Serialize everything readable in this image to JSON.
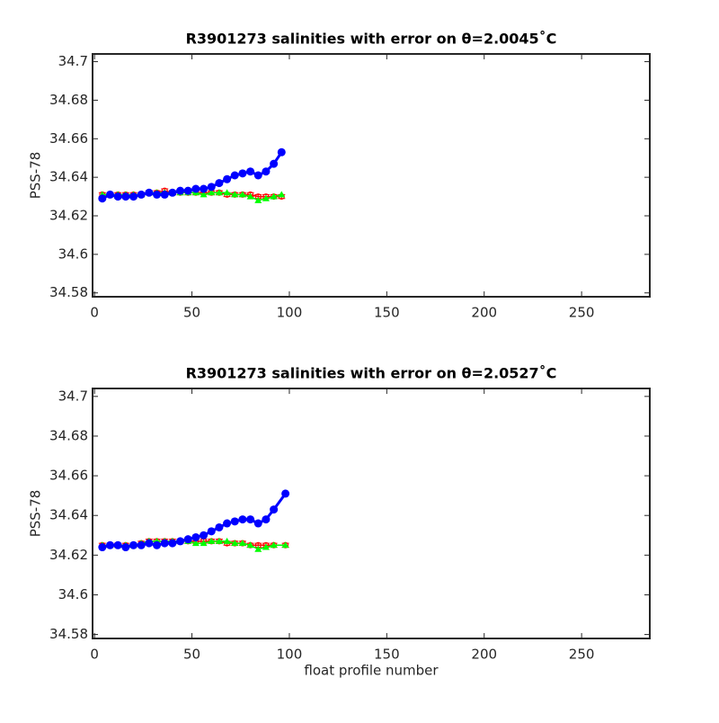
{
  "chart_data": [
    {
      "type": "line",
      "title": "R3901273 salinities with error on θ=2.0045˚C",
      "ylabel": "PSS-78",
      "x": [
        4,
        8,
        12,
        16,
        20,
        24,
        28,
        32,
        36,
        40,
        44,
        48,
        52,
        56,
        60,
        64,
        68,
        72,
        76,
        80,
        84,
        88,
        92,
        96
      ],
      "series": [
        {
          "color": "#ff0000",
          "marker": "circle-open",
          "values": [
            34.631,
            34.631,
            34.631,
            34.631,
            34.631,
            34.631,
            34.632,
            34.632,
            34.633,
            34.632,
            34.632,
            34.632,
            34.632,
            34.632,
            34.632,
            34.632,
            34.631,
            34.631,
            34.631,
            34.631,
            34.63,
            34.63,
            34.63,
            34.63
          ],
          "errors": [
            0.001,
            0.001,
            0.001,
            0.001,
            0.001,
            0.001,
            0.001,
            0.001,
            0.001,
            0.001,
            0.001,
            0.001,
            0.001,
            0.001,
            0.001,
            0.001,
            0.001,
            0.001,
            0.001,
            0.001,
            0.001,
            0.001,
            0.001,
            0.001
          ]
        },
        {
          "color": "#00ff00",
          "marker": "triangle",
          "values": [
            34.631,
            34.631,
            34.631,
            34.631,
            34.631,
            34.631,
            34.632,
            34.632,
            34.632,
            34.632,
            34.632,
            34.632,
            34.632,
            34.631,
            34.632,
            34.632,
            34.632,
            34.631,
            34.631,
            34.63,
            34.628,
            34.629,
            34.63,
            34.631
          ]
        },
        {
          "color": "#0000ff",
          "marker": "circle",
          "values": [
            34.629,
            34.631,
            34.63,
            34.63,
            34.63,
            34.631,
            34.632,
            34.631,
            34.631,
            34.632,
            34.633,
            34.633,
            34.634,
            34.634,
            34.635,
            34.637,
            34.639,
            34.641,
            34.642,
            34.643,
            34.641,
            34.643,
            34.647,
            34.653
          ]
        }
      ],
      "xlim": [
        -1,
        285
      ],
      "xticks": [
        0,
        50,
        100,
        150,
        200,
        250
      ],
      "ylim": [
        34.578,
        34.704
      ],
      "yticks": [
        34.58,
        34.6,
        34.62,
        34.64,
        34.66,
        34.68,
        34.7
      ]
    },
    {
      "type": "line",
      "title": "R3901273 salinities with error on θ=2.0527˚C",
      "ylabel": "PSS-78",
      "xlabel": "float profile number",
      "x": [
        4,
        8,
        12,
        16,
        20,
        24,
        28,
        32,
        36,
        40,
        44,
        48,
        52,
        56,
        60,
        64,
        68,
        72,
        76,
        80,
        84,
        88,
        92,
        98
      ],
      "series": [
        {
          "color": "#ff0000",
          "marker": "circle-open",
          "values": [
            34.625,
            34.625,
            34.625,
            34.625,
            34.625,
            34.626,
            34.627,
            34.627,
            34.627,
            34.627,
            34.627,
            34.627,
            34.627,
            34.627,
            34.627,
            34.627,
            34.626,
            34.626,
            34.626,
            34.625,
            34.625,
            34.625,
            34.625,
            34.625
          ],
          "errors": [
            0.001,
            0.001,
            0.001,
            0.001,
            0.001,
            0.001,
            0.001,
            0.001,
            0.001,
            0.001,
            0.001,
            0.001,
            0.001,
            0.001,
            0.001,
            0.001,
            0.001,
            0.001,
            0.001,
            0.001,
            0.001,
            0.001,
            0.001,
            0.001
          ]
        },
        {
          "color": "#00ff00",
          "marker": "triangle",
          "values": [
            34.625,
            34.625,
            34.625,
            34.625,
            34.625,
            34.626,
            34.627,
            34.627,
            34.627,
            34.627,
            34.627,
            34.627,
            34.626,
            34.626,
            34.627,
            34.627,
            34.627,
            34.626,
            34.626,
            34.625,
            34.623,
            34.624,
            34.625,
            34.625
          ]
        },
        {
          "color": "#0000ff",
          "marker": "circle",
          "values": [
            34.624,
            34.625,
            34.625,
            34.624,
            34.625,
            34.625,
            34.626,
            34.625,
            34.626,
            34.626,
            34.627,
            34.628,
            34.629,
            34.63,
            34.632,
            34.634,
            34.636,
            34.637,
            34.638,
            34.638,
            34.636,
            34.638,
            34.643,
            34.651
          ]
        }
      ],
      "xlim": [
        -1,
        285
      ],
      "xticks": [
        0,
        50,
        100,
        150,
        200,
        250
      ],
      "ylim": [
        34.578,
        34.704
      ],
      "yticks": [
        34.58,
        34.6,
        34.62,
        34.64,
        34.66,
        34.68,
        34.7
      ]
    }
  ]
}
